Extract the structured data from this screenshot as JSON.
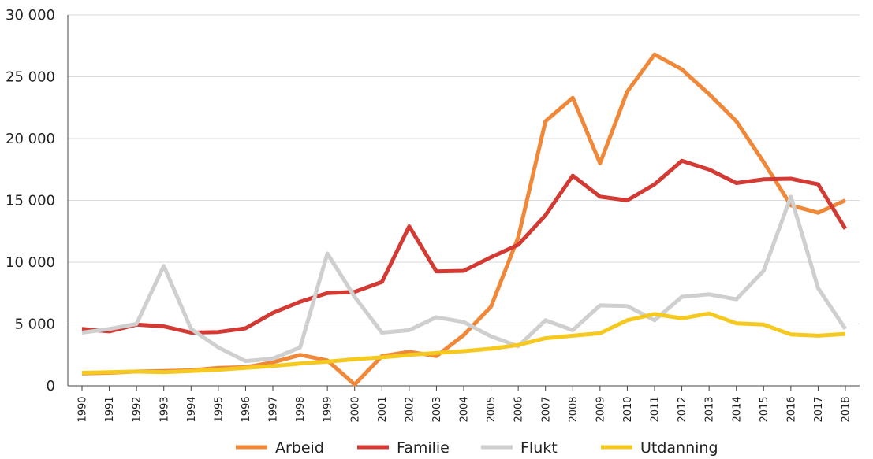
{
  "chart_data": {
    "type": "line",
    "title": "",
    "xlabel": "",
    "ylabel": "",
    "ylim": [
      0,
      30000
    ],
    "yticks": [
      0,
      5000,
      10000,
      15000,
      20000,
      25000,
      30000
    ],
    "ytick_labels": [
      "0",
      "5 000",
      "10 000",
      "15 000",
      "20 000",
      "25 000",
      "30 000"
    ],
    "grid": true,
    "legend_position": "bottom",
    "x": [
      "1990",
      "1991",
      "1992",
      "1993",
      "1994",
      "1995",
      "1996",
      "1997",
      "1998",
      "1999",
      "2000",
      "2001",
      "2002",
      "2003",
      "2004",
      "2005",
      "2006",
      "2007",
      "2008",
      "2009",
      "2010",
      "2011",
      "2012",
      "2013",
      "2014",
      "2015",
      "2016",
      "2017",
      "2018"
    ],
    "series": [
      {
        "name": "Arbeid",
        "color": "#F0883A",
        "values": [
          1000,
          1050,
          1150,
          1200,
          1250,
          1450,
          1500,
          1900,
          2500,
          2050,
          100,
          2400,
          2750,
          2400,
          4100,
          6400,
          12000,
          21400,
          23300,
          18000,
          23800,
          26800,
          25600,
          23600,
          21400,
          18100,
          14600,
          14000,
          15000
        ]
      },
      {
        "name": "Familie",
        "color": "#D33A33",
        "values": [
          4600,
          4400,
          4950,
          4800,
          4300,
          4350,
          4650,
          5900,
          6800,
          7500,
          7600,
          8400,
          12900,
          9250,
          9300,
          10400,
          11400,
          13800,
          17000,
          15300,
          15000,
          16300,
          18200,
          17500,
          16400,
          16700,
          16750,
          16300,
          12700
        ]
      },
      {
        "name": "Flukt",
        "color": "#CFCFCF",
        "values": [
          4300,
          4600,
          5000,
          9700,
          4600,
          3100,
          2000,
          2200,
          3100,
          10700,
          7200,
          4300,
          4500,
          5550,
          5150,
          4000,
          3200,
          5300,
          4500,
          6500,
          6450,
          5300,
          7200,
          7400,
          7000,
          9300,
          15300,
          7900,
          4600
        ]
      },
      {
        "name": "Utdanning",
        "color": "#F5C91F",
        "values": [
          1050,
          1100,
          1150,
          1100,
          1200,
          1300,
          1450,
          1600,
          1800,
          1950,
          2150,
          2300,
          2500,
          2650,
          2800,
          3000,
          3300,
          3850,
          4050,
          4250,
          5300,
          5800,
          5450,
          5850,
          5050,
          4950,
          4150,
          4050,
          4200
        ]
      }
    ]
  }
}
